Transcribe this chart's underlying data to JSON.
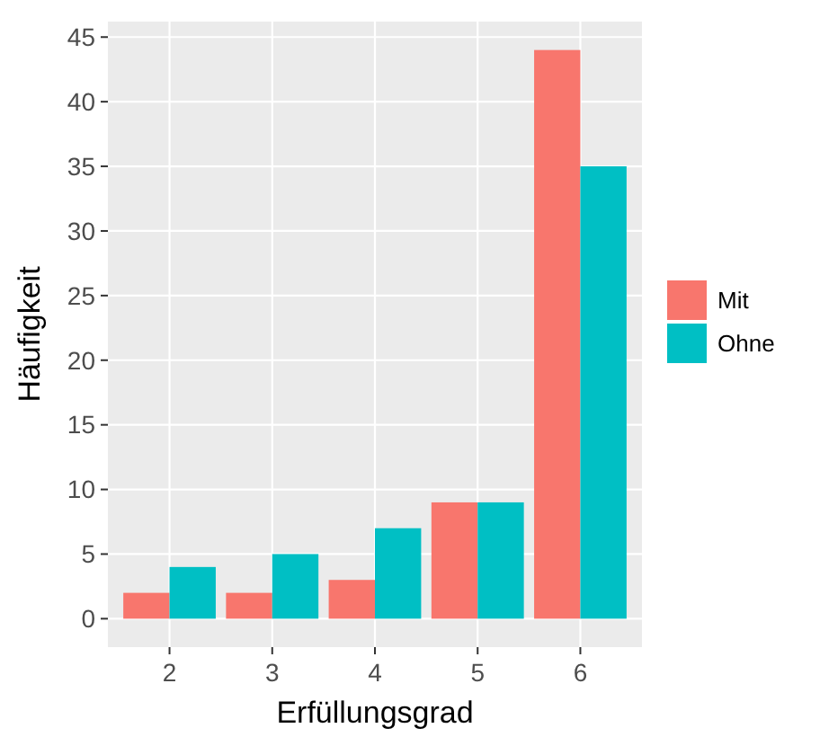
{
  "chart_data": {
    "type": "bar",
    "xlabel": "Erfüllungsgrad",
    "ylabel": "Häufigkeit",
    "categories": [
      "2",
      "3",
      "4",
      "5",
      "6"
    ],
    "series": [
      {
        "name": "Mit",
        "color": "#f8766d",
        "values": [
          2,
          2,
          3,
          9,
          44
        ]
      },
      {
        "name": "Ohne",
        "color": "#00bfc4",
        "values": [
          4,
          5,
          7,
          9,
          35
        ]
      }
    ],
    "ylim": [
      -2.2,
      46.2
    ],
    "yticks": [
      0,
      5,
      10,
      15,
      20,
      25,
      30,
      35,
      40,
      45
    ],
    "grid": true,
    "legend": "right"
  }
}
